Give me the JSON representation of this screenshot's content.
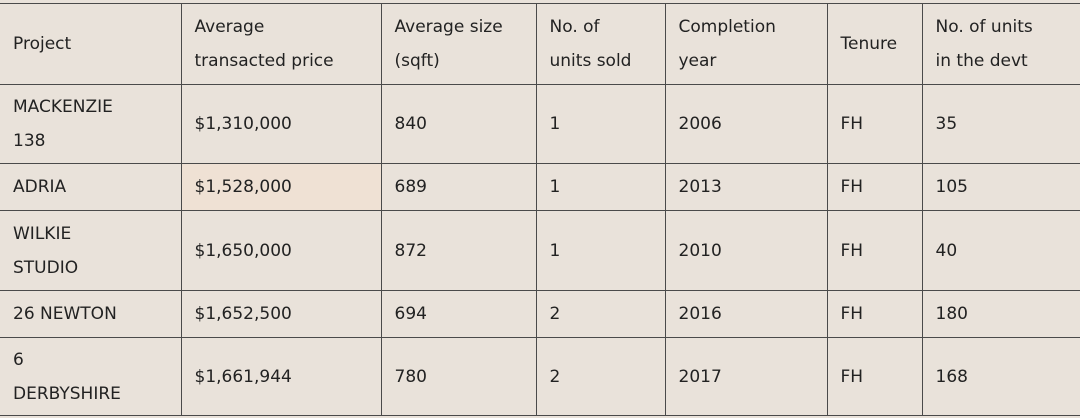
{
  "table": {
    "header": [
      [
        "Project"
      ],
      [
        "Average",
        "transacted price"
      ],
      [
        "Average size",
        "(sqft)"
      ],
      [
        "No. of",
        "units sold"
      ],
      [
        "Completion",
        "year"
      ],
      [
        "Tenure"
      ],
      [
        "No. of units",
        "in the devt"
      ]
    ],
    "rows": [
      [
        [
          "MACKENZIE",
          "138"
        ],
        [
          "$1,310,000"
        ],
        [
          "840"
        ],
        [
          "1"
        ],
        [
          "2006"
        ],
        [
          "FH"
        ],
        [
          "35"
        ]
      ],
      [
        [
          "ADRIA"
        ],
        [
          "$1,528,000"
        ],
        [
          "689"
        ],
        [
          "1"
        ],
        [
          "2013"
        ],
        [
          "FH"
        ],
        [
          "105"
        ]
      ],
      [
        [
          "WILKIE",
          "STUDIO"
        ],
        [
          "$1,650,000"
        ],
        [
          "872"
        ],
        [
          "1"
        ],
        [
          "2010"
        ],
        [
          "FH"
        ],
        [
          "40"
        ]
      ],
      [
        [
          "26 NEWTON"
        ],
        [
          "$1,652,500"
        ],
        [
          "694"
        ],
        [
          "2"
        ],
        [
          "2016"
        ],
        [
          "FH"
        ],
        [
          "180"
        ]
      ],
      [
        [
          "6",
          "DERBYSHIRE"
        ],
        [
          "$1,661,944"
        ],
        [
          "780"
        ],
        [
          "2"
        ],
        [
          "2017"
        ],
        [
          "FH"
        ],
        [
          "168"
        ]
      ]
    ]
  }
}
